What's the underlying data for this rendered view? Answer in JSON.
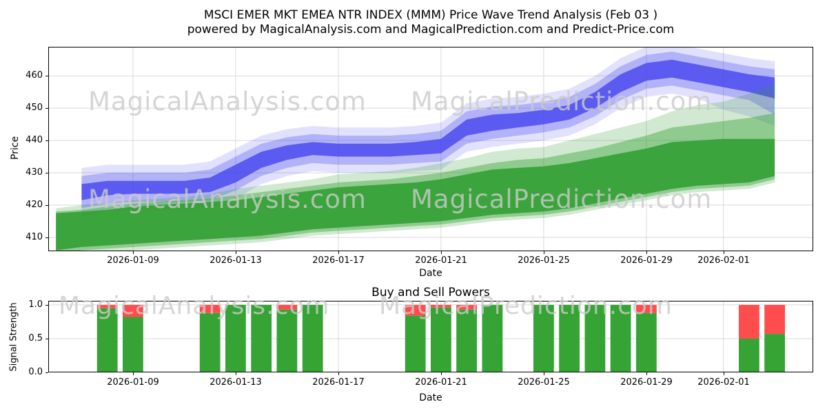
{
  "title": {
    "line1": "MSCI EMER MKT EMEA NTR INDEX (MMM) Price Wave Trend Analysis (Feb 03 )",
    "line2": "powered by MagicalAnalysis.com and MagicalPrediction.com and Predict-Price.com"
  },
  "watermarks": {
    "analysis": "MagicalAnalysis.com",
    "prediction": "MagicalPrediction.com"
  },
  "chart_data": [
    {
      "type": "area",
      "xlabel": "Date",
      "ylabel": "Price",
      "grid": true,
      "x_dates": [
        "2026-01-06",
        "2026-01-07",
        "2026-01-08",
        "2026-01-09",
        "2026-01-10",
        "2026-01-11",
        "2026-01-12",
        "2026-01-13",
        "2026-01-14",
        "2026-01-15",
        "2026-01-16",
        "2026-01-17",
        "2026-01-18",
        "2026-01-19",
        "2026-01-20",
        "2026-01-21",
        "2026-01-22",
        "2026-01-23",
        "2026-01-24",
        "2026-01-25",
        "2026-01-26",
        "2026-01-27",
        "2026-01-28",
        "2026-01-29",
        "2026-01-30",
        "2026-01-31",
        "2026-02-01",
        "2026-02-02",
        "2026-02-03"
      ],
      "x_tick_labels": [
        "2026-01-09",
        "2026-01-13",
        "2026-01-17",
        "2026-01-21",
        "2026-01-25",
        "2026-01-29",
        "2026-02-01"
      ],
      "x_tick_day_index": [
        3,
        7,
        11,
        15,
        19,
        23,
        26
      ],
      "y_ticks": [
        410,
        420,
        430,
        440,
        450,
        460
      ],
      "ylim": [
        405.7,
        469
      ],
      "xlim_days": [
        -0.3,
        29.5
      ],
      "series": [
        {
          "name": "price-wave-band-outer",
          "color": "#4646f0",
          "opacity": 0.16,
          "x_start": 1,
          "upper": [
            431.5,
            432.5,
            432.5,
            432.5,
            432.5,
            433.5,
            437.5,
            441.5,
            443.5,
            444.5,
            444,
            444,
            444,
            444.5,
            445.5,
            451.5,
            453,
            453.5,
            454.5,
            456,
            460,
            465.5,
            469,
            470,
            468.5,
            467,
            465.5,
            464.5
          ],
          "lower": [
            416.5,
            418,
            418.5,
            418.5,
            418.5,
            419,
            422,
            426.5,
            429,
            430.5,
            430,
            430,
            430,
            430.5,
            431,
            436.5,
            438,
            439,
            440,
            441.5,
            445,
            450,
            453.5,
            454.5,
            453,
            449.5,
            447.5,
            444.5
          ]
        },
        {
          "name": "price-wave-band-mid",
          "color": "#4646f0",
          "opacity": 0.3,
          "x_start": 1,
          "upper": [
            429,
            430,
            430,
            430,
            430,
            431,
            435,
            439,
            441,
            442,
            441.5,
            441.5,
            441.5,
            442,
            443,
            449,
            450.5,
            451,
            452,
            453.5,
            457.5,
            463,
            466.5,
            467.5,
            466,
            464.5,
            463,
            462
          ],
          "lower": [
            419,
            420.5,
            421,
            421,
            421,
            421.5,
            424.5,
            429,
            431.5,
            433,
            432.5,
            432.5,
            432.5,
            433,
            433.5,
            439,
            440.5,
            441.5,
            442.5,
            444,
            447.5,
            452.5,
            456,
            457,
            455.5,
            454,
            452.5,
            448
          ]
        },
        {
          "name": "price-wave-band-inner",
          "color": "#4343ee",
          "opacity": 0.78,
          "x_start": 1,
          "upper": [
            426.5,
            427.5,
            427.5,
            427.5,
            427.5,
            428.5,
            432.5,
            436.5,
            438.5,
            439.5,
            439,
            439,
            439,
            439.5,
            440.5,
            446.5,
            448,
            448.5,
            449.5,
            451,
            455,
            460.5,
            464,
            465,
            463.5,
            462,
            460.5,
            459.5
          ],
          "lower": [
            421.5,
            423,
            423.5,
            423.5,
            423.5,
            424,
            427,
            431.5,
            434,
            435.5,
            435,
            435,
            435,
            435.5,
            436,
            441.5,
            443,
            444,
            445,
            446.5,
            450,
            455,
            458.5,
            459.5,
            458,
            456.5,
            455,
            453
          ]
        },
        {
          "name": "prediction-wave-band-outer",
          "color": "#2e9d2e",
          "opacity": 0.22,
          "x_start": 0,
          "upper": [
            419,
            420,
            420.5,
            421.5,
            422,
            422.5,
            423.5,
            425,
            426,
            427,
            428,
            429.5,
            430,
            430.5,
            431.5,
            433,
            434.5,
            436.5,
            437.5,
            438,
            440,
            442,
            444,
            446,
            449,
            451,
            452,
            454.5,
            457.5
          ],
          "lower": [
            404,
            405,
            405.5,
            406,
            406.5,
            407,
            407.5,
            408,
            408.5,
            409.5,
            410.5,
            411,
            411.5,
            412,
            412.5,
            413,
            414,
            415,
            415.5,
            416,
            417,
            418.5,
            420,
            421.5,
            423,
            424,
            424.5,
            425,
            427
          ]
        },
        {
          "name": "prediction-wave-band-mid",
          "color": "#2e9d2e",
          "opacity": 0.4,
          "x_start": 0,
          "upper": [
            418,
            418.5,
            419.5,
            420.5,
            421,
            421.5,
            422,
            423,
            424,
            425,
            426,
            427,
            427.5,
            428,
            429,
            430,
            431.5,
            433,
            434,
            434.5,
            436,
            437.5,
            439.5,
            441.5,
            444,
            445,
            446,
            447,
            448.5
          ],
          "lower": [
            405,
            406,
            406.5,
            407,
            407.5,
            408,
            408.5,
            409,
            409.5,
            410.5,
            411.5,
            412,
            412.5,
            413,
            413.5,
            414,
            415,
            416,
            416.5,
            417,
            418,
            419.5,
            421,
            422.5,
            424,
            425,
            425.5,
            426,
            428
          ]
        },
        {
          "name": "prediction-wave-band-inner",
          "color": "#2e9d2e",
          "opacity": 0.85,
          "x_start": 0,
          "upper": [
            417.5,
            418,
            418.5,
            419.5,
            420,
            420.5,
            421,
            421.5,
            422.5,
            423.5,
            424.5,
            425.5,
            426,
            426.5,
            427,
            428,
            429.5,
            431,
            431.5,
            432,
            433,
            434.5,
            436,
            437.5,
            439.5,
            440,
            440.5,
            440.5,
            440.5
          ],
          "lower": [
            406,
            407,
            407.5,
            408,
            408.5,
            409,
            409.5,
            410,
            410.5,
            411.5,
            412.5,
            413,
            413.5,
            414,
            414.5,
            415,
            416,
            417,
            417.5,
            418,
            419,
            420.5,
            422,
            423.5,
            425,
            426,
            426.5,
            427,
            429
          ]
        }
      ]
    },
    {
      "type": "bar",
      "title": "Buy and Sell Powers",
      "xlabel": "Date",
      "ylabel": "Signal Strength",
      "y_ticks": [
        0.0,
        0.5,
        1.0
      ],
      "ylim": [
        0,
        1.06
      ],
      "bar_width_days": 0.8,
      "colors": {
        "buy": "#35a435",
        "sell": "#ff4d4d"
      },
      "bars": [
        {
          "date": "2026-01-08",
          "buy": 0.95,
          "sell": 0.05
        },
        {
          "date": "2026-01-09",
          "buy": 0.82,
          "sell": 0.18
        },
        {
          "date": "2026-01-12",
          "buy": 0.88,
          "sell": 0.12
        },
        {
          "date": "2026-01-13",
          "buy": 1.0,
          "sell": 0.0
        },
        {
          "date": "2026-01-14",
          "buy": 1.0,
          "sell": 0.0
        },
        {
          "date": "2026-01-15",
          "buy": 0.93,
          "sell": 0.07
        },
        {
          "date": "2026-01-16",
          "buy": 1.0,
          "sell": 0.0
        },
        {
          "date": "2026-01-20",
          "buy": 0.84,
          "sell": 0.16
        },
        {
          "date": "2026-01-21",
          "buy": 0.96,
          "sell": 0.04
        },
        {
          "date": "2026-01-22",
          "buy": 0.93,
          "sell": 0.07
        },
        {
          "date": "2026-01-23",
          "buy": 1.0,
          "sell": 0.0
        },
        {
          "date": "2026-01-25",
          "buy": 1.0,
          "sell": 0.0
        },
        {
          "date": "2026-01-26",
          "buy": 1.0,
          "sell": 0.0
        },
        {
          "date": "2026-01-27",
          "buy": 1.0,
          "sell": 0.0
        },
        {
          "date": "2026-01-28",
          "buy": 1.0,
          "sell": 0.0
        },
        {
          "date": "2026-01-29",
          "buy": 0.88,
          "sell": 0.12
        },
        {
          "date": "2026-02-02",
          "buy": 0.5,
          "sell": 0.5
        },
        {
          "date": "2026-02-03",
          "buy": 0.57,
          "sell": 0.43
        }
      ]
    }
  ]
}
